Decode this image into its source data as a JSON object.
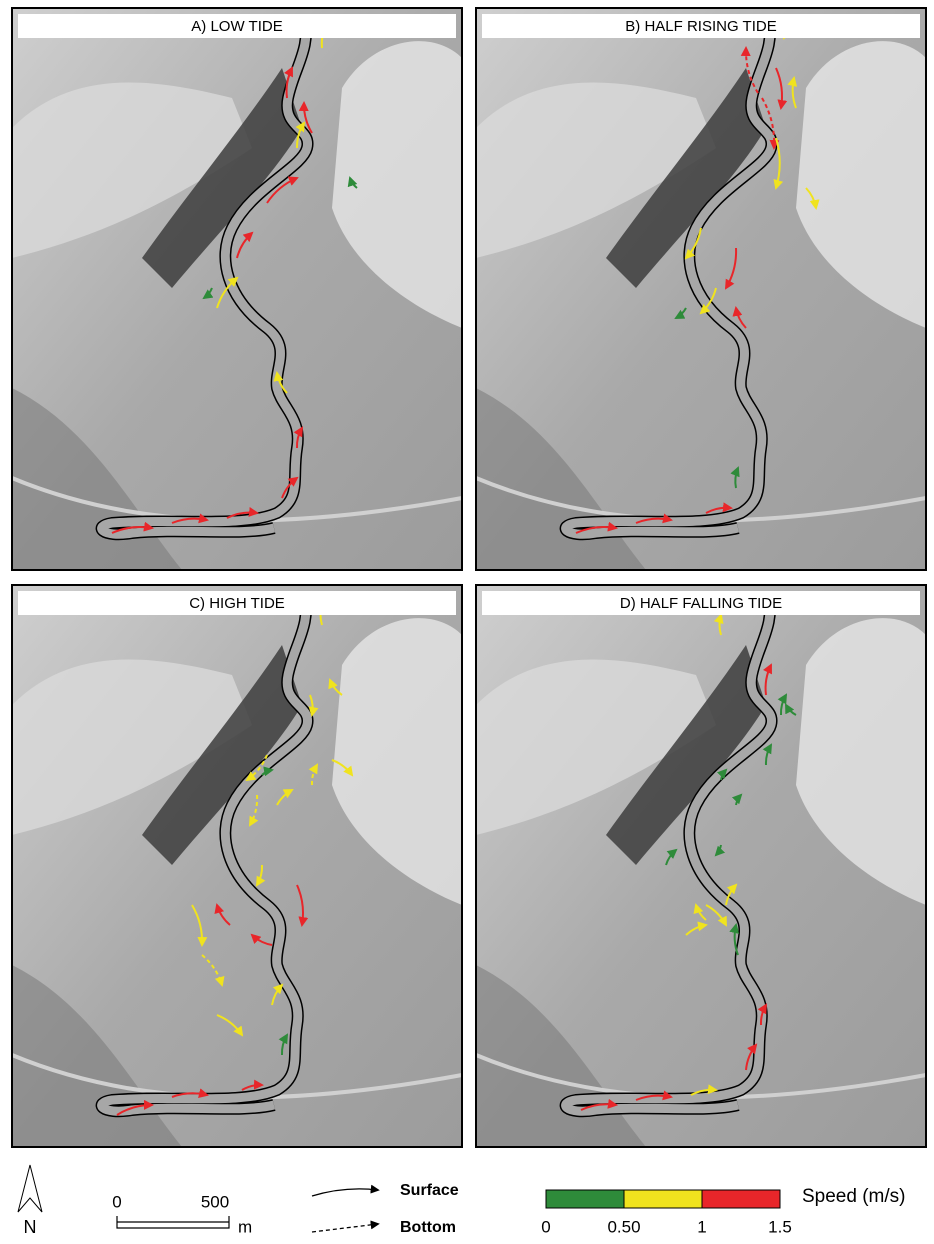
{
  "panels": [
    {
      "title": "A) LOW TIDE"
    },
    {
      "title": "B) HALF RISING TIDE"
    },
    {
      "title": "C) HIGH TIDE"
    },
    {
      "title": "D) HALF FALLING TIDE"
    }
  ],
  "legend": {
    "north": "N",
    "scale_bar": {
      "ticks": [
        0,
        500
      ],
      "unit": "m"
    },
    "surface": "Surface",
    "bottom": "Bottom",
    "speed": {
      "title": "Speed (m/s)",
      "colors": [
        "#2e8b3a",
        "#f0e31e",
        "#e8262a"
      ],
      "ticks": [
        0,
        {
          "value": 0.5,
          "label": "0.50"
        },
        1,
        1.5
      ]
    }
  }
}
